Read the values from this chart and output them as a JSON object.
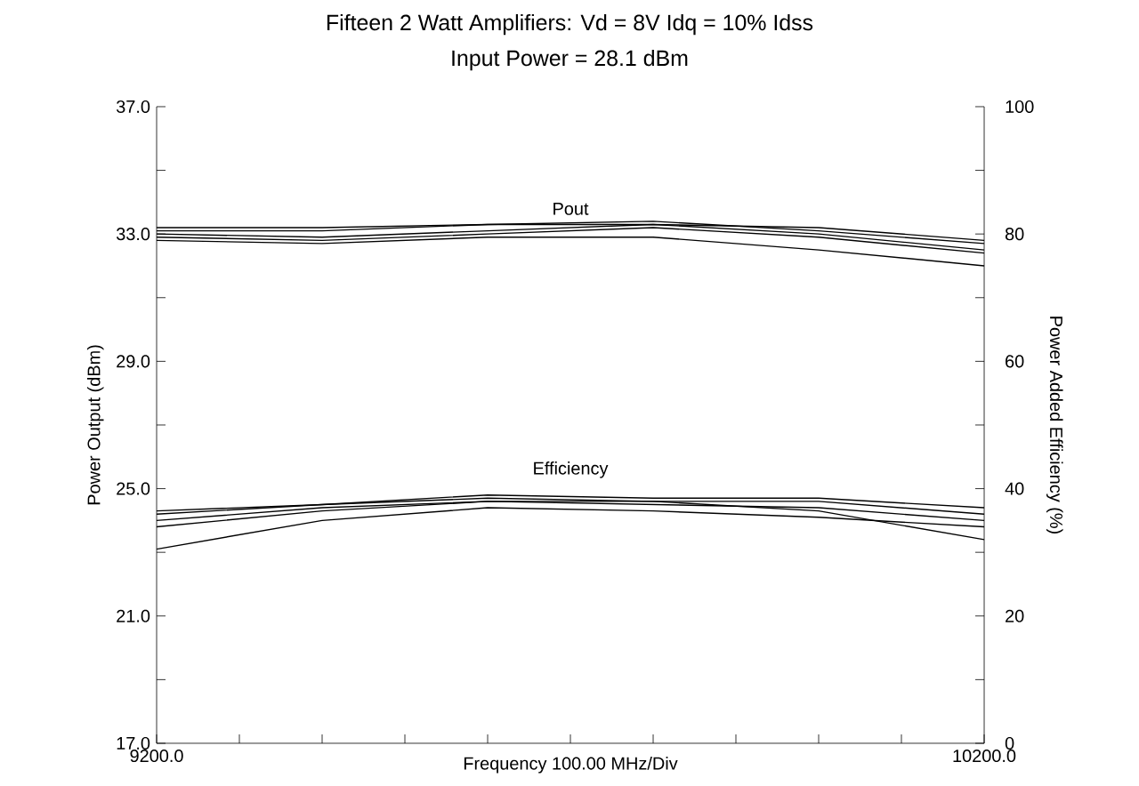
{
  "chart_data": {
    "type": "line",
    "title": "Fifteen 2 Watt Amplifiers: Vd = 8V   Idq = 10% Idss",
    "subtitle": "Input Power = 28.1 dBm",
    "xlabel": "Frequency 100.00 MHz/Div",
    "ylabel": "Power Output (dBm)",
    "y2label": "Power Added Efficiency (%)",
    "x": [
      9200,
      9400,
      9600,
      9800,
      10000,
      10200
    ],
    "xlim": [
      9200,
      10200
    ],
    "xticks": [
      {
        "value": 9200,
        "label": "9200.0"
      },
      {
        "value": 9300,
        "label": null
      },
      {
        "value": 9400,
        "label": null
      },
      {
        "value": 9500,
        "label": null
      },
      {
        "value": 9600,
        "label": null
      },
      {
        "value": 9700,
        "label": null
      },
      {
        "value": 9800,
        "label": null
      },
      {
        "value": 9900,
        "label": null
      },
      {
        "value": 10000,
        "label": null
      },
      {
        "value": 10100,
        "label": null
      },
      {
        "value": 10200,
        "label": "10200.0"
      }
    ],
    "ylim": [
      17,
      37
    ],
    "yticks": [
      {
        "value": 17,
        "label": "17.0"
      },
      {
        "value": 19,
        "label": null
      },
      {
        "value": 21,
        "label": "21.0"
      },
      {
        "value": 23,
        "label": null
      },
      {
        "value": 25,
        "label": "25.0"
      },
      {
        "value": 27,
        "label": null
      },
      {
        "value": 29,
        "label": "29.0"
      },
      {
        "value": 31,
        "label": null
      },
      {
        "value": 33,
        "label": "33.0"
      },
      {
        "value": 35,
        "label": null
      },
      {
        "value": 37,
        "label": "37.0"
      }
    ],
    "y2lim": [
      0,
      100
    ],
    "y2ticks": [
      0,
      {
        "value": 10,
        "label": null
      },
      20,
      {
        "value": 30,
        "label": null
      },
      40,
      {
        "value": 50,
        "label": null
      },
      60,
      {
        "value": 70,
        "label": null
      },
      80,
      {
        "value": 90,
        "label": null
      },
      100
    ],
    "series": [
      {
        "color": "#000000",
        "values": [
          33.1,
          33.1,
          33.3,
          33.4,
          33.1,
          32.7
        ]
      },
      {
        "color": "#000000",
        "values": [
          33.0,
          32.9,
          33.1,
          33.3,
          33.0,
          32.5
        ]
      },
      {
        "color": "#000000",
        "values": [
          32.9,
          32.8,
          33.0,
          33.2,
          32.9,
          32.4
        ]
      },
      {
        "color": "#000000",
        "values": [
          33.2,
          33.2,
          33.3,
          33.3,
          33.2,
          32.8
        ]
      },
      {
        "color": "#000000",
        "values": [
          32.8,
          32.7,
          32.9,
          32.9,
          32.5,
          32.0
        ]
      },
      {
        "color": "#000000",
        "axis": "y2",
        "values": [
          36,
          37.5,
          39,
          38.5,
          38.5,
          37
        ]
      },
      {
        "color": "#000000",
        "axis": "y2",
        "values": [
          35,
          37,
          38,
          38,
          38,
          36
        ]
      },
      {
        "color": "#000000",
        "axis": "y2",
        "values": [
          34,
          36.5,
          38,
          37.5,
          37,
          35
        ]
      },
      {
        "color": "#000000",
        "axis": "y2",
        "values": [
          30.5,
          35,
          37,
          36.5,
          35.5,
          34
        ]
      },
      {
        "color": "#000000",
        "axis": "y2",
        "values": [
          36.5,
          37.5,
          38.5,
          38,
          36.5,
          32
        ]
      }
    ],
    "annotations": [
      "Pout",
      "Efficiency"
    ],
    "grid": false,
    "marker": "none",
    "line_style": "solid"
  }
}
